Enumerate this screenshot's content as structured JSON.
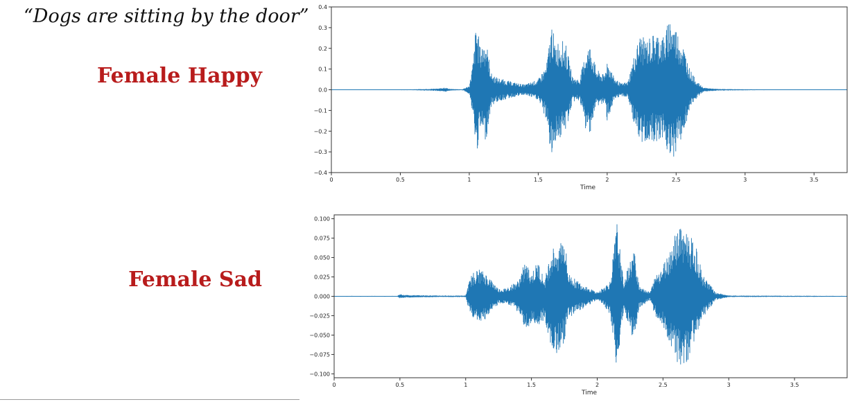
{
  "quote": "“Dogs are sitting by the door”",
  "labels": {
    "happy": "Female Happy",
    "sad": "Female Sad"
  },
  "colors": {
    "waveform": "#1f77b4",
    "label": "#b81c1c"
  },
  "chart_data": [
    {
      "type": "line",
      "xlabel": "Time",
      "ylabel": "",
      "xlim": [
        0,
        3.74
      ],
      "ylim": [
        -0.4,
        0.4
      ],
      "xticks": [
        0,
        0.5,
        1,
        1.5,
        2,
        2.5,
        3,
        3.5
      ],
      "xtick_labels": [
        "0",
        "0.5",
        "1",
        "1.5",
        "2",
        "2.5",
        "3",
        "3.5"
      ],
      "yticks": [
        0.4,
        0.3,
        0.2,
        0.1,
        0.0,
        -0.1,
        -0.2,
        -0.3,
        -0.4
      ],
      "ytick_labels": [
        "0.4",
        "0.3",
        "0.2",
        "0.1",
        "0.0",
        "−0.1",
        "−0.2",
        "−0.3",
        "−0.4"
      ],
      "envelope": {
        "t": [
          0,
          0.58,
          0.62,
          0.7,
          0.78,
          0.82,
          0.86,
          0.95,
          1.0,
          1.03,
          1.05,
          1.08,
          1.12,
          1.16,
          1.2,
          1.25,
          1.3,
          1.4,
          1.5,
          1.56,
          1.6,
          1.62,
          1.66,
          1.7,
          1.75,
          1.8,
          1.85,
          1.88,
          1.92,
          1.98,
          2.0,
          2.05,
          2.1,
          2.15,
          2.2,
          2.24,
          2.28,
          2.35,
          2.42,
          2.45,
          2.5,
          2.55,
          2.6,
          2.65,
          2.7,
          2.8,
          3.05,
          3.74
        ],
        "pos": [
          0.001,
          0.002,
          0.003,
          0.004,
          0.006,
          0.012,
          0.004,
          0.002,
          0.02,
          0.15,
          0.335,
          0.21,
          0.25,
          0.08,
          0.06,
          0.05,
          0.04,
          0.025,
          0.05,
          0.12,
          0.335,
          0.22,
          0.25,
          0.22,
          0.06,
          0.05,
          0.2,
          0.22,
          0.1,
          0.07,
          0.15,
          0.06,
          0.03,
          0.04,
          0.18,
          0.27,
          0.24,
          0.28,
          0.26,
          0.36,
          0.3,
          0.22,
          0.1,
          0.04,
          0.01,
          0.004,
          0.002,
          0.001
        ],
        "neg": [
          0.001,
          0.002,
          0.003,
          0.004,
          0.006,
          0.012,
          0.004,
          0.002,
          0.02,
          0.15,
          0.33,
          0.2,
          0.25,
          0.08,
          0.06,
          0.05,
          0.04,
          0.025,
          0.05,
          0.15,
          0.36,
          0.25,
          0.24,
          0.2,
          0.06,
          0.05,
          0.22,
          0.2,
          0.08,
          0.07,
          0.15,
          0.06,
          0.03,
          0.04,
          0.18,
          0.28,
          0.25,
          0.25,
          0.24,
          0.37,
          0.3,
          0.22,
          0.1,
          0.04,
          0.01,
          0.004,
          0.002,
          0.001
        ]
      }
    },
    {
      "type": "line",
      "xlabel": "Time",
      "ylabel": "",
      "xlim": [
        0,
        3.9
      ],
      "ylim": [
        -0.105,
        0.105
      ],
      "xticks": [
        0,
        0.5,
        1,
        1.5,
        2,
        2.5,
        3,
        3.5
      ],
      "xtick_labels": [
        "0",
        "0.5",
        "1",
        "1.5",
        "2",
        "2.5",
        "3",
        "3.5"
      ],
      "yticks": [
        0.1,
        0.075,
        0.05,
        0.025,
        0.0,
        -0.025,
        -0.05,
        -0.075,
        -0.1
      ],
      "ytick_labels": [
        "0.100",
        "0.075",
        "0.050",
        "0.025",
        "0.000",
        "−0.025",
        "−0.050",
        "−0.075",
        "−0.100"
      ],
      "envelope": {
        "t": [
          0,
          0.48,
          0.5,
          0.52,
          0.6,
          0.8,
          1.0,
          1.02,
          1.05,
          1.1,
          1.15,
          1.2,
          1.25,
          1.3,
          1.4,
          1.45,
          1.5,
          1.55,
          1.6,
          1.65,
          1.7,
          1.75,
          1.78,
          1.85,
          1.95,
          2.0,
          2.05,
          2.1,
          2.15,
          2.2,
          2.28,
          2.32,
          2.4,
          2.45,
          2.5,
          2.55,
          2.6,
          2.65,
          2.7,
          2.75,
          2.8,
          2.9,
          3.0,
          3.9
        ],
        "pos": [
          0.0005,
          0.0005,
          0.003,
          0.002,
          0.0015,
          0.001,
          0.001,
          0.015,
          0.03,
          0.035,
          0.03,
          0.02,
          0.01,
          0.01,
          0.02,
          0.045,
          0.03,
          0.045,
          0.02,
          0.06,
          0.07,
          0.08,
          0.03,
          0.02,
          0.01,
          0.005,
          0.012,
          0.02,
          0.095,
          0.02,
          0.06,
          0.015,
          0.005,
          0.03,
          0.04,
          0.06,
          0.085,
          0.095,
          0.08,
          0.065,
          0.03,
          0.005,
          0.001,
          0.0005
        ],
        "neg": [
          0.0005,
          0.0005,
          0.003,
          0.002,
          0.0015,
          0.001,
          0.001,
          0.015,
          0.03,
          0.035,
          0.03,
          0.02,
          0.01,
          0.01,
          0.02,
          0.045,
          0.035,
          0.045,
          0.03,
          0.065,
          0.075,
          0.06,
          0.03,
          0.02,
          0.01,
          0.005,
          0.012,
          0.025,
          0.095,
          0.02,
          0.06,
          0.015,
          0.005,
          0.03,
          0.04,
          0.06,
          0.085,
          0.095,
          0.08,
          0.05,
          0.03,
          0.005,
          0.001,
          0.0005
        ]
      }
    }
  ]
}
